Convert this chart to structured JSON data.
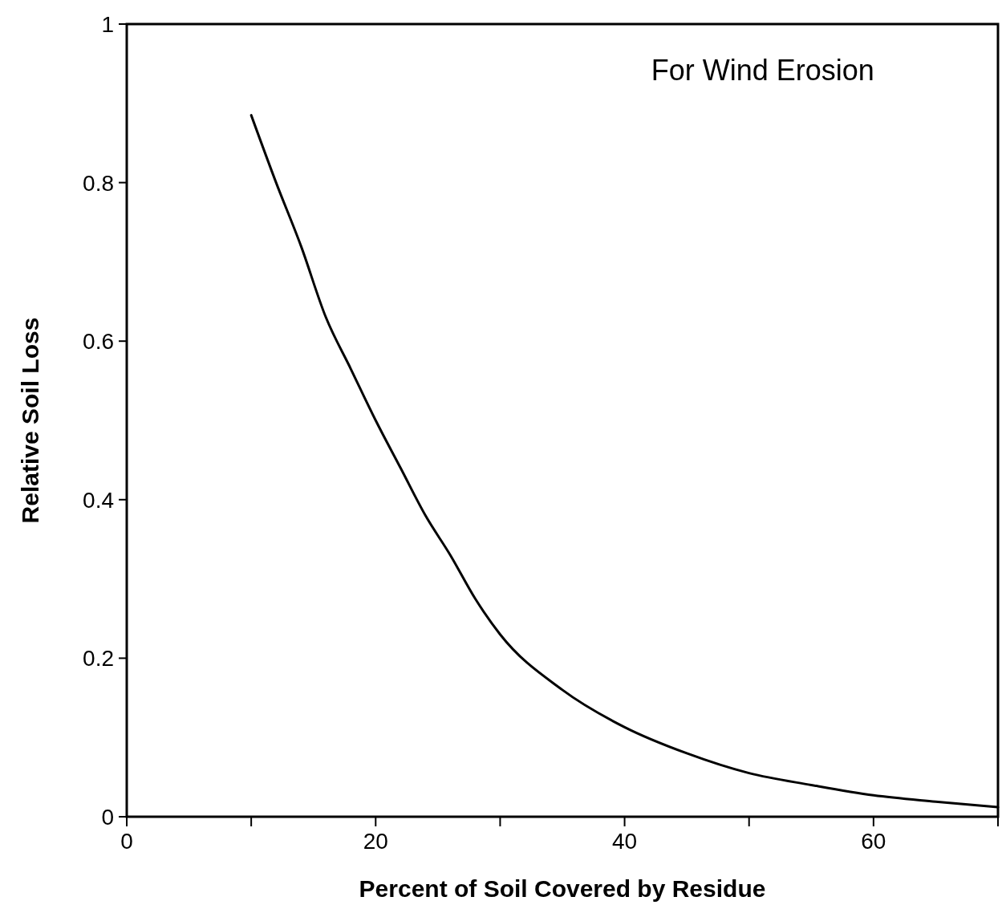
{
  "chart_data": {
    "type": "line",
    "xlabel": "Percent of Soil Covered by Residue",
    "ylabel": "Relative Soil Loss",
    "annotations": [
      "For Wind Erosion"
    ],
    "x": [
      10,
      12,
      14,
      16,
      18,
      20,
      22,
      24,
      26,
      28,
      30,
      35,
      40,
      45,
      50,
      55,
      60,
      65,
      70
    ],
    "series": [
      {
        "color": "#000000",
        "values": [
          0.885,
          0.8,
          0.72,
          0.63,
          0.565,
          0.5,
          0.44,
          0.38,
          0.33,
          0.275,
          0.23,
          0.16,
          0.113,
          0.08,
          0.055,
          0.04,
          0.027,
          0.019,
          0.012
        ]
      }
    ],
    "xlim": [
      0,
      70
    ],
    "ylim": [
      0,
      1
    ],
    "xticks": [
      0,
      {
        "value": 10,
        "label": null
      },
      20,
      {
        "value": 30,
        "label": null
      },
      40,
      {
        "value": 50,
        "label": null
      },
      60,
      {
        "value": 70,
        "label": null
      }
    ],
    "yticks": [
      0,
      0.2,
      0.4,
      0.6,
      0.8,
      1
    ],
    "grid": false,
    "marker": "none",
    "line_style": "solid"
  }
}
